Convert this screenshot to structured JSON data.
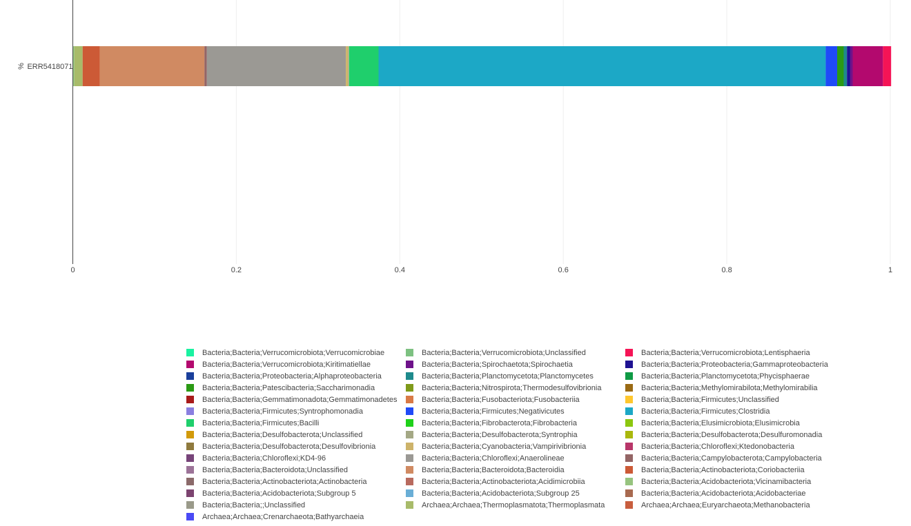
{
  "chart_data": {
    "type": "bar",
    "orientation": "horizontal",
    "stacked": true,
    "categories": [
      "ERR5418071"
    ],
    "ylabel": "%",
    "xlim": [
      0,
      1
    ],
    "x_ticks": [
      "0",
      "0.2",
      "0.4",
      "0.6",
      "0.8",
      "1"
    ],
    "grid": true,
    "legend_position": "bottom",
    "series": [
      {
        "name": "Bacteria;Bacteria;Acidobacteriota;Vicinamibacteria",
        "color": "#97c47f",
        "values": [
          0.002
        ]
      },
      {
        "name": "Archaea;Archaea;Thermoplasmatota;Thermoplasmata",
        "color": "#a8bb6a",
        "values": [
          0.01
        ]
      },
      {
        "name": "Bacteria;Bacteria;Actinobacteriota;Coriobacteriia",
        "color": "#cc5a36",
        "values": [
          0.021
        ]
      },
      {
        "name": "Bacteria;Bacteria;Bacteroidota;Bacteroidia",
        "color": "#d08a62",
        "values": [
          0.128
        ]
      },
      {
        "name": "Bacteria;Bacteria;Campylobacterota;Campylobacteria",
        "color": "#946565",
        "values": [
          0.003
        ]
      },
      {
        "name": "Bacteria;Bacteria;Chloroflexi;Anaerolineae",
        "color": "#9b9994",
        "values": [
          0.17
        ]
      },
      {
        "name": "Bacteria;Bacteria;Cyanobacteria;Vampirivibrionia",
        "color": "#cdb36a",
        "values": [
          0.003
        ]
      },
      {
        "name": "Bacteria;Bacteria;Desulfobacterota;Syntrophia",
        "color": "#a4a885",
        "values": [
          0.001
        ]
      },
      {
        "name": "Bacteria;Bacteria;Firmicutes;Bacilli",
        "color": "#1fcf6c",
        "values": [
          0.036
        ]
      },
      {
        "name": "Bacteria;Bacteria;Firmicutes;Clostridia",
        "color": "#1ca8c6",
        "values": [
          0.547
        ]
      },
      {
        "name": "Bacteria;Bacteria;Firmicutes;Negativicutes",
        "color": "#1f4af8",
        "values": [
          0.014
        ]
      },
      {
        "name": "Bacteria;Bacteria;Patescibacteria;Saccharimonadia",
        "color": "#2b9a14",
        "values": [
          0.008
        ]
      },
      {
        "name": "Bacteria;Bacteria;Planctomycetota;Planctomycetes",
        "color": "#1e8a8c",
        "values": [
          0.004
        ]
      },
      {
        "name": "Bacteria;Bacteria;Proteobacteria;Gammaproteobacteria",
        "color": "#1f1292",
        "values": [
          0.004
        ]
      },
      {
        "name": "Bacteria;Bacteria;Spirochaetota;Spirochaetia",
        "color": "#6e128a",
        "values": [
          0.003
        ]
      },
      {
        "name": "Bacteria;Bacteria;Verrucomicrobiota;Kiritimatiellae",
        "color": "#b3096e",
        "values": [
          0.037
        ]
      },
      {
        "name": "Bacteria;Bacteria;Verrucomicrobiota;Lentisphaeria",
        "color": "#f51456",
        "values": [
          0.01
        ]
      }
    ]
  },
  "legend": {
    "items": [
      {
        "label": "Bacteria;Bacteria;Verrucomicrobiota;Verrucomicrobiae",
        "color": "#1af2a1"
      },
      {
        "label": "Bacteria;Bacteria;Verrucomicrobiota;Unclassified",
        "color": "#7dc181"
      },
      {
        "label": "Bacteria;Bacteria;Verrucomicrobiota;Lentisphaeria",
        "color": "#f51456"
      },
      {
        "label": "Bacteria;Bacteria;Verrucomicrobiota;Kiritimatiellae",
        "color": "#b3096e"
      },
      {
        "label": "Bacteria;Bacteria;Spirochaetota;Spirochaetia",
        "color": "#6e128a"
      },
      {
        "label": "Bacteria;Bacteria;Proteobacteria;Gammaproteobacteria",
        "color": "#1f1292"
      },
      {
        "label": "Bacteria;Bacteria;Proteobacteria;Alphaproteobacteria",
        "color": "#1a3f9b"
      },
      {
        "label": "Bacteria;Bacteria;Planctomycetota;Planctomycetes",
        "color": "#1e8a8c"
      },
      {
        "label": "Bacteria;Bacteria;Planctomycetota;Phycisphaerae",
        "color": "#0f9a45"
      },
      {
        "label": "Bacteria;Bacteria;Patescibacteria;Saccharimonadia",
        "color": "#2b9a14"
      },
      {
        "label": "Bacteria;Bacteria;Nitrospirota;Thermodesulfovibrionia",
        "color": "#7f9a1a"
      },
      {
        "label": "Bacteria;Bacteria;Methylomirabilota;Methylomirabilia",
        "color": "#9a6a14"
      },
      {
        "label": "Bacteria;Bacteria;Gemmatimonadota;Gemmatimonadetes",
        "color": "#a81a1a"
      },
      {
        "label": "Bacteria;Bacteria;Fusobacteriota;Fusobacteriia",
        "color": "#d97a46"
      },
      {
        "label": "Bacteria;Bacteria;Firmicutes;Unclassified",
        "color": "#ffc72e"
      },
      {
        "label": "Bacteria;Bacteria;Firmicutes;Syntrophomonadia",
        "color": "#8a7fe0"
      },
      {
        "label": "Bacteria;Bacteria;Firmicutes;Negativicutes",
        "color": "#1f4af8"
      },
      {
        "label": "Bacteria;Bacteria;Firmicutes;Clostridia",
        "color": "#1ca8c6"
      },
      {
        "label": "Bacteria;Bacteria;Firmicutes;Bacilli",
        "color": "#1fcf6c"
      },
      {
        "label": "Bacteria;Bacteria;Fibrobacterota;Fibrobacteria",
        "color": "#1fd11a"
      },
      {
        "label": "Bacteria;Bacteria;Elusimicrobiota;Elusimicrobia",
        "color": "#8cc70f"
      },
      {
        "label": "Bacteria;Bacteria;Desulfobacterota;Unclassified",
        "color": "#d29a0a"
      },
      {
        "label": "Bacteria;Bacteria;Desulfobacterota;Syntrophia",
        "color": "#a4a885"
      },
      {
        "label": "Bacteria;Bacteria;Desulfobacterota;Desulfuromonadia",
        "color": "#aab80d"
      },
      {
        "label": "Bacteria;Bacteria;Desulfobacterota;Desulfovibrionia",
        "color": "#8f7a3e"
      },
      {
        "label": "Bacteria;Bacteria;Cyanobacteria;Vampirivibrionia",
        "color": "#cdb36a"
      },
      {
        "label": "Bacteria;Bacteria;Chloroflexi;Ktedonobacteria",
        "color": "#b83669"
      },
      {
        "label": "Bacteria;Bacteria;Chloroflexi;KD4-96",
        "color": "#774479"
      },
      {
        "label": "Bacteria;Bacteria;Chloroflexi;Anaerolineae",
        "color": "#9b9994"
      },
      {
        "label": "Bacteria;Bacteria;Campylobacterota;Campylobacteria",
        "color": "#946565"
      },
      {
        "label": "Bacteria;Bacteria;Bacteroidota;Unclassified",
        "color": "#9c7398"
      },
      {
        "label": "Bacteria;Bacteria;Bacteroidota;Bacteroidia",
        "color": "#d08a62"
      },
      {
        "label": "Bacteria;Bacteria;Actinobacteriota;Coriobacteriia",
        "color": "#cc5a36"
      },
      {
        "label": "Bacteria;Bacteria;Actinobacteriota;Actinobacteria",
        "color": "#8b6a6a"
      },
      {
        "label": "Bacteria;Bacteria;Actinobacteriota;Acidimicrobiia",
        "color": "#b86a5e"
      },
      {
        "label": "Bacteria;Bacteria;Acidobacteriota;Vicinamibacteria",
        "color": "#97c47f"
      },
      {
        "label": "Bacteria;Bacteria;Acidobacteriota;Subgroup 5",
        "color": "#7c4470"
      },
      {
        "label": "Bacteria;Bacteria;Acidobacteriota;Subgroup 25",
        "color": "#6aaed6"
      },
      {
        "label": "Bacteria;Bacteria;Acidobacteriota;Acidobacteriae",
        "color": "#a86a50"
      },
      {
        "label": "Bacteria;Bacteria;;Unclassified",
        "color": "#9a9a8a"
      },
      {
        "label": "Archaea;Archaea;Thermoplasmatota;Thermoplasmata",
        "color": "#a8bb6a"
      },
      {
        "label": "Archaea;Archaea;Euryarchaeota;Methanobacteria",
        "color": "#c85e3e"
      },
      {
        "label": "Archaea;Archaea;Crenarchaeota;Bathyarchaeia",
        "color": "#4a4af5"
      }
    ]
  }
}
